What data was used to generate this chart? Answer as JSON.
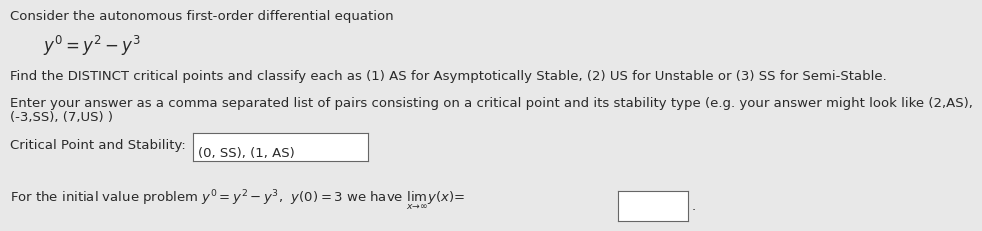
{
  "bg_color": "#e8e8e8",
  "text_color": "#2a2a2a",
  "line1": "Consider the autonomous first-order differential equation",
  "line3": "Find the DISTINCT critical points and classify each as (1) AS for Asymptotically Stable, (2) US for Unstable or (3) SS for Semi-Stable.",
  "line4a": "Enter your answer as a comma separated list of pairs consisting on a critical point and its stability type (e.g. your answer might look like (2,AS),",
  "line4b": "(-3,SS), (7,US) )",
  "line5_label": "Critical Point and Stability:",
  "line5_box": "(0, SS), (1, AS)",
  "font_size": 9.5
}
